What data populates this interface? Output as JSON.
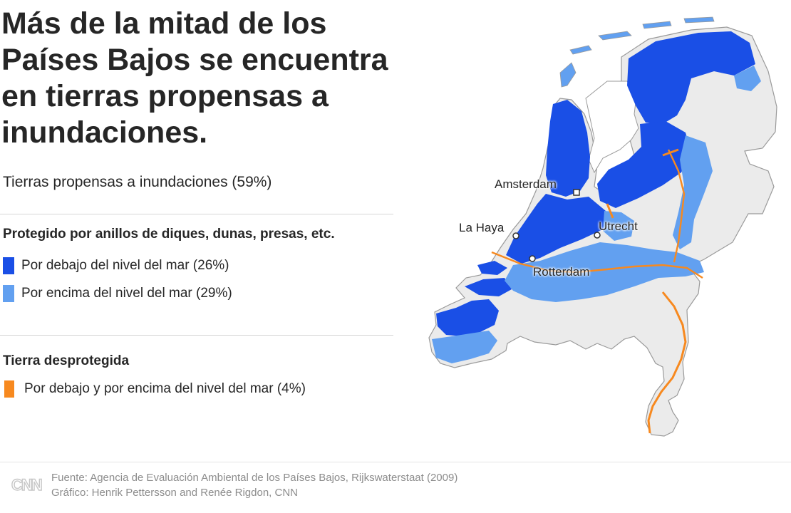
{
  "header": {
    "title": "Más de la mitad de los Países Bajos se encuentra en tierras propensas a inundaciones.",
    "subtitle": "Tierras propensas a inundaciones (59%)"
  },
  "legend": {
    "protected_heading": "Protegido por anillos de diques, dunas, presas, etc.",
    "unprotected_heading": "Tierra desprotegida",
    "items": [
      {
        "label": "Por debajo del nivel del mar (26%)",
        "color": "#1a4fe6"
      },
      {
        "label": "Por encima del nivel del mar (29%)",
        "color": "#62a0f0"
      },
      {
        "label": "Por debajo y por encima del nivel del mar (4%)",
        "color": "#f7891f"
      }
    ]
  },
  "map": {
    "land_color": "#ebebeb",
    "border_color": "#9a9a9a",
    "cities": [
      {
        "name": "Amsterdam"
      },
      {
        "name": "La Haya"
      },
      {
        "name": "Utrecht"
      },
      {
        "name": "Rotterdam"
      }
    ]
  },
  "footer": {
    "source": "Fuente: Agencia de Evaluación Ambiental de los Países Bajos, Rijkswaterstaat (2009)",
    "credit": "Gráfico: Henrik Pettersson and Renée Rigdon, CNN",
    "logo_text": "CNN"
  }
}
